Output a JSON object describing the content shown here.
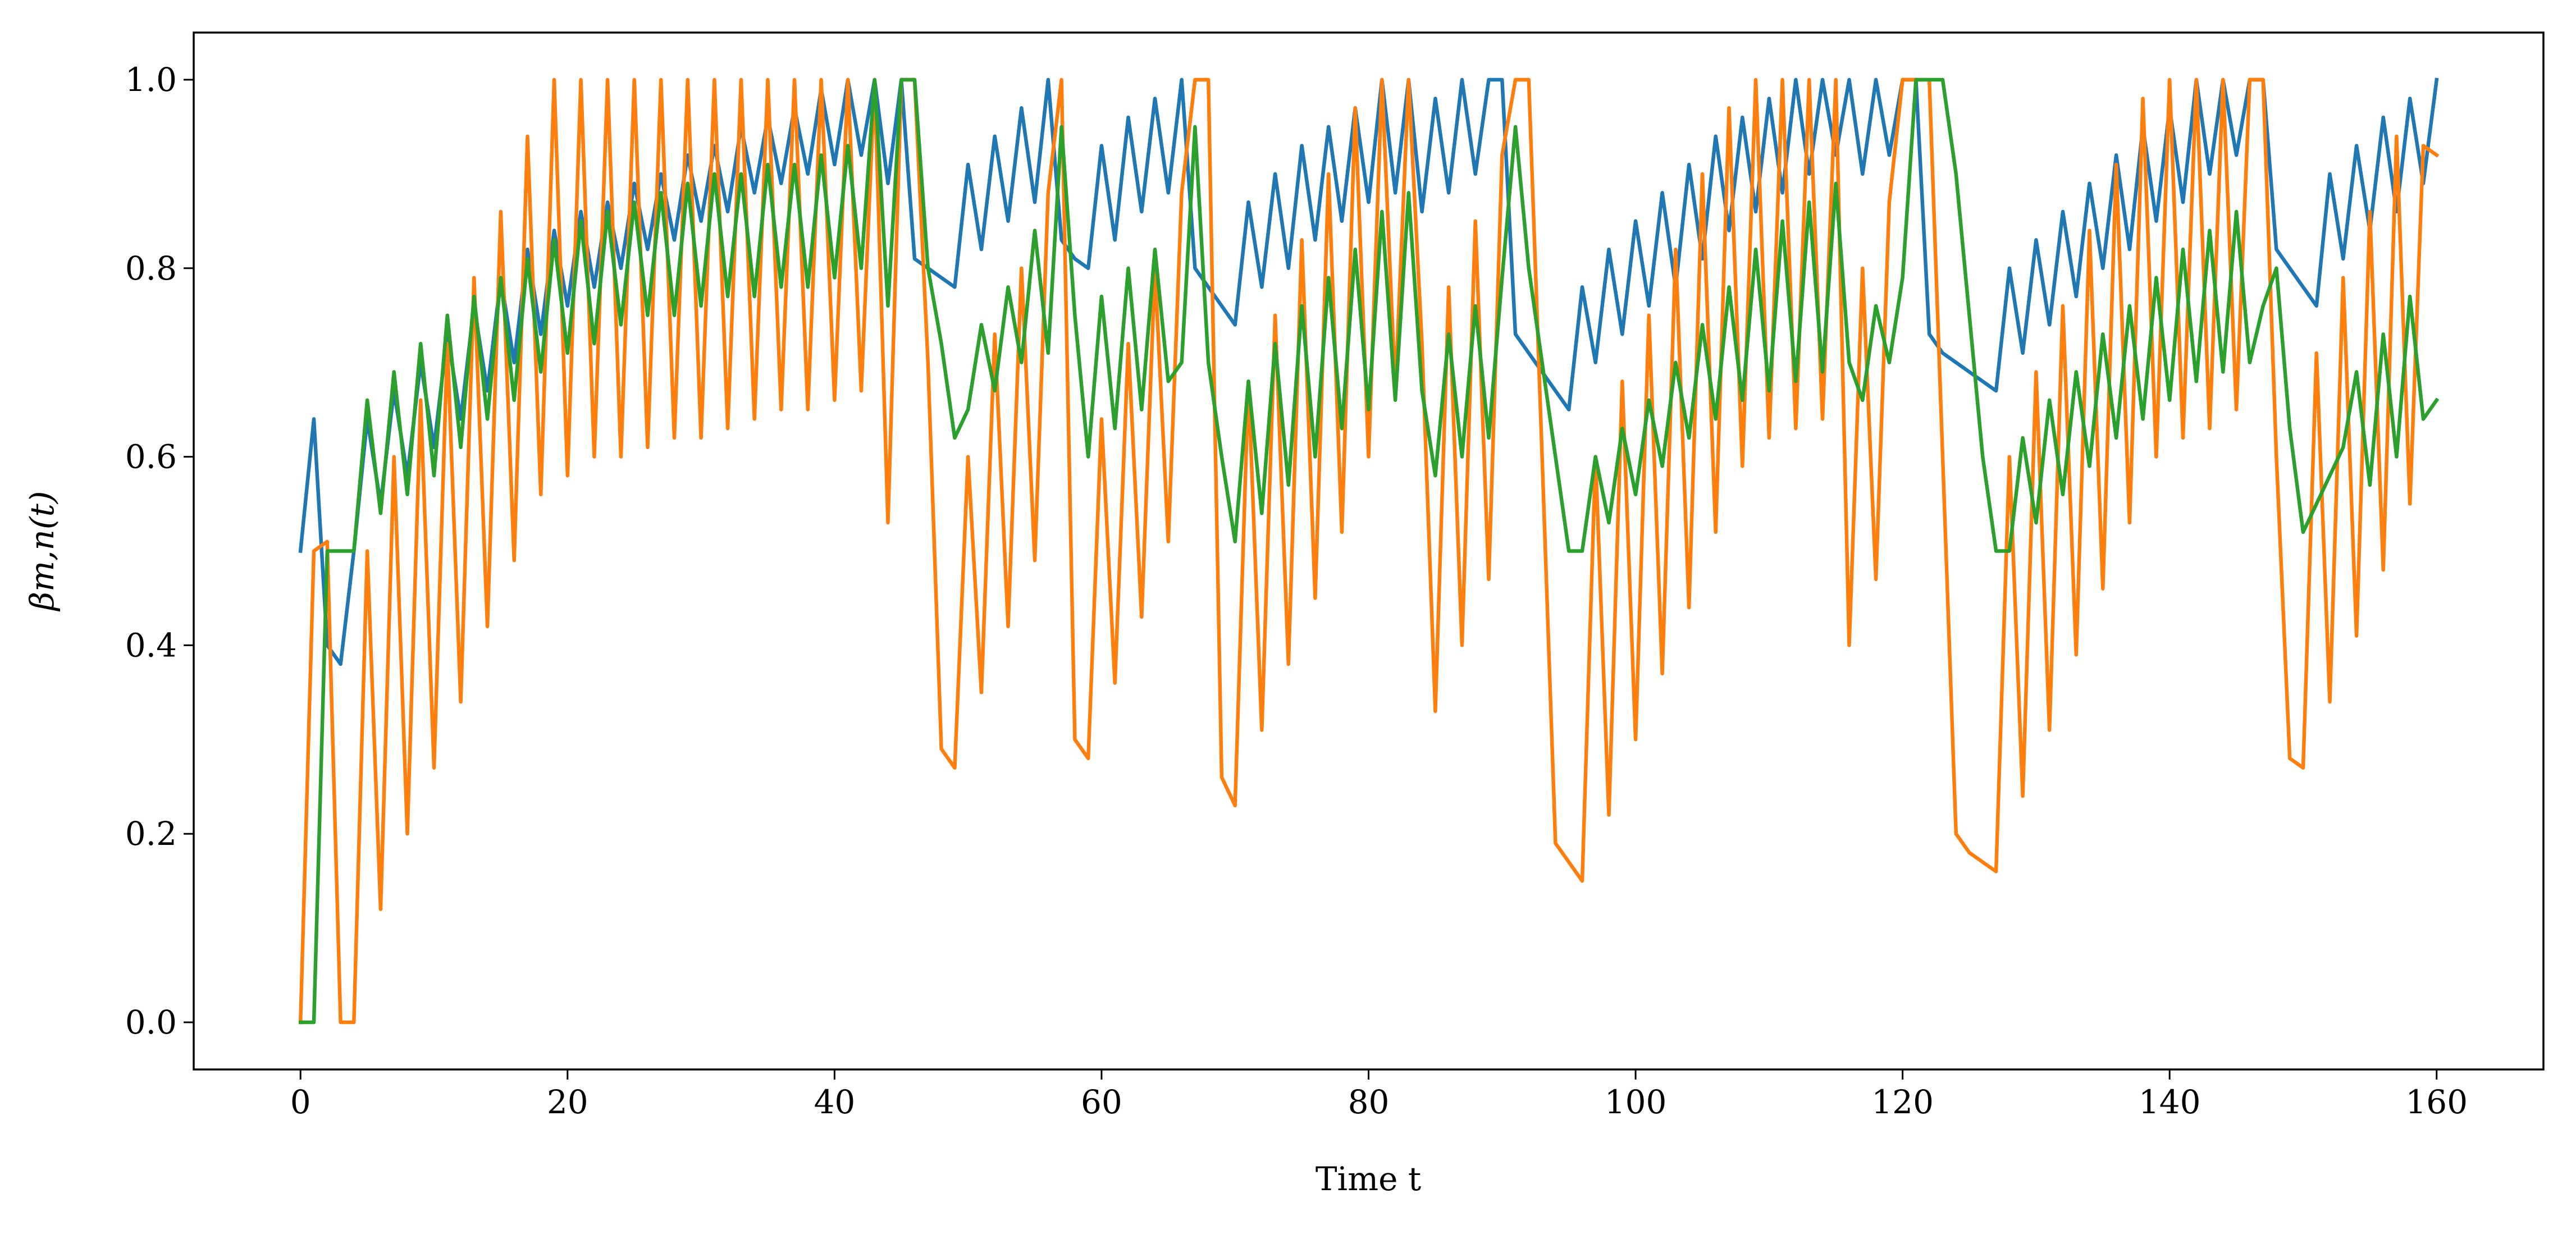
{
  "chart_data": {
    "type": "line",
    "xlabel": "Time t",
    "ylabel": "βm,n(t)",
    "xlim": [
      -8,
      168
    ],
    "ylim": [
      -0.05,
      1.05
    ],
    "xticks": [
      0,
      20,
      40,
      60,
      80,
      100,
      120,
      140,
      160
    ],
    "yticks": [
      {
        "value": 0,
        "label": "0.0"
      },
      {
        "value": 0.2,
        "label": "0.2"
      },
      {
        "value": 0.4,
        "label": "0.4"
      },
      {
        "value": 0.6,
        "label": "0.6"
      },
      {
        "value": 0.8,
        "label": "0.8"
      },
      {
        "value": 1,
        "label": "1.0"
      }
    ],
    "grid": false,
    "x": [
      0,
      1,
      2,
      3,
      4,
      5,
      6,
      7,
      8,
      9,
      10,
      11,
      12,
      13,
      14,
      15,
      16,
      17,
      18,
      19,
      20,
      21,
      22,
      23,
      24,
      25,
      26,
      27,
      28,
      29,
      30,
      31,
      32,
      33,
      34,
      35,
      36,
      37,
      38,
      39,
      40,
      41,
      42,
      43,
      44,
      45,
      46,
      47,
      48,
      49,
      50,
      51,
      52,
      53,
      54,
      55,
      56,
      57,
      58,
      59,
      60,
      61,
      62,
      63,
      64,
      65,
      66,
      67,
      68,
      69,
      70,
      71,
      72,
      73,
      74,
      75,
      76,
      77,
      78,
      79,
      80,
      81,
      82,
      83,
      84,
      85,
      86,
      87,
      88,
      89,
      90,
      91,
      92,
      93,
      94,
      95,
      96,
      97,
      98,
      99,
      100,
      101,
      102,
      103,
      104,
      105,
      106,
      107,
      108,
      109,
      110,
      111,
      112,
      113,
      114,
      115,
      116,
      117,
      118,
      119,
      120,
      121,
      122,
      123,
      124,
      125,
      126,
      127,
      128,
      129,
      130,
      131,
      132,
      133,
      134,
      135,
      136,
      137,
      138,
      139,
      140,
      141,
      142,
      143,
      144,
      145,
      146,
      147,
      148,
      149,
      150,
      151,
      152,
      153,
      154,
      155,
      156,
      157,
      158,
      159,
      160
    ],
    "series": [
      {
        "color": "#1f77b4",
        "values": [
          0.5,
          0.64,
          0.4,
          0.38,
          0.5,
          0.64,
          0.55,
          0.67,
          0.58,
          0.7,
          0.61,
          0.73,
          0.64,
          0.76,
          0.67,
          0.79,
          0.7,
          0.82,
          0.73,
          0.84,
          0.76,
          0.86,
          0.78,
          0.87,
          0.8,
          0.89,
          0.82,
          0.9,
          0.83,
          0.92,
          0.85,
          0.93,
          0.86,
          0.95,
          0.88,
          0.96,
          0.89,
          0.97,
          0.9,
          0.99,
          0.91,
          1.0,
          0.92,
          1.0,
          0.89,
          1.0,
          0.81,
          0.8,
          0.79,
          0.78,
          0.91,
          0.82,
          0.94,
          0.85,
          0.97,
          0.87,
          1.0,
          0.83,
          0.81,
          0.8,
          0.93,
          0.83,
          0.96,
          0.86,
          0.98,
          0.88,
          1.0,
          0.8,
          0.78,
          0.76,
          0.74,
          0.87,
          0.78,
          0.9,
          0.8,
          0.93,
          0.83,
          0.95,
          0.85,
          0.97,
          0.87,
          1.0,
          0.88,
          1.0,
          0.86,
          0.98,
          0.88,
          1.0,
          0.9,
          1.0,
          1.0,
          0.73,
          0.71,
          0.69,
          0.67,
          0.65,
          0.78,
          0.7,
          0.82,
          0.73,
          0.85,
          0.76,
          0.88,
          0.78,
          0.91,
          0.81,
          0.94,
          0.84,
          0.96,
          0.86,
          0.98,
          0.88,
          1.0,
          0.9,
          1.0,
          0.92,
          1.0,
          0.9,
          1.0,
          0.92,
          1.0,
          1.0,
          0.73,
          0.71,
          0.7,
          0.69,
          0.68,
          0.67,
          0.8,
          0.71,
          0.83,
          0.74,
          0.86,
          0.77,
          0.89,
          0.8,
          0.92,
          0.82,
          0.95,
          0.85,
          0.97,
          0.87,
          1.0,
          0.9,
          1.0,
          0.92,
          1.0,
          1.0,
          0.82,
          0.8,
          0.78,
          0.76,
          0.9,
          0.81,
          0.93,
          0.84,
          0.96,
          0.86,
          0.98,
          0.89,
          1.0
        ]
      },
      {
        "color": "#ff7f0e",
        "values": [
          0,
          0.5,
          0.51,
          0,
          0,
          0.5,
          0.12,
          0.6,
          0.2,
          0.66,
          0.27,
          0.72,
          0.34,
          0.79,
          0.42,
          0.86,
          0.49,
          0.94,
          0.56,
          1.0,
          0.58,
          1.0,
          0.6,
          1.0,
          0.6,
          1.0,
          0.61,
          1.0,
          0.62,
          1.0,
          0.62,
          1.0,
          0.63,
          1.0,
          0.64,
          1.0,
          0.65,
          1.0,
          0.65,
          1.0,
          0.66,
          1.0,
          0.67,
          1.0,
          0.53,
          1.0,
          1.0,
          0.7,
          0.29,
          0.27,
          0.6,
          0.35,
          0.73,
          0.42,
          0.8,
          0.49,
          0.88,
          1.0,
          0.3,
          0.28,
          0.64,
          0.36,
          0.72,
          0.43,
          0.8,
          0.51,
          0.88,
          1.0,
          1.0,
          0.26,
          0.23,
          0.68,
          0.31,
          0.75,
          0.38,
          0.83,
          0.45,
          0.9,
          0.52,
          0.97,
          0.6,
          1.0,
          0.67,
          1.0,
          0.72,
          0.33,
          0.78,
          0.4,
          0.85,
          0.47,
          0.92,
          1.0,
          1.0,
          0.6,
          0.19,
          0.17,
          0.15,
          0.6,
          0.22,
          0.68,
          0.3,
          0.75,
          0.37,
          0.82,
          0.44,
          0.9,
          0.52,
          0.97,
          0.59,
          1.0,
          0.62,
          1.0,
          0.63,
          1.0,
          0.64,
          1.0,
          0.4,
          0.8,
          0.47,
          0.87,
          1.0,
          1.0,
          1.0,
          0.6,
          0.2,
          0.18,
          0.17,
          0.16,
          0.6,
          0.24,
          0.69,
          0.31,
          0.76,
          0.39,
          0.84,
          0.46,
          0.91,
          0.53,
          0.98,
          0.6,
          1.0,
          0.62,
          1.0,
          0.63,
          1.0,
          0.65,
          1.0,
          1.0,
          0.6,
          0.28,
          0.27,
          0.71,
          0.34,
          0.79,
          0.41,
          0.86,
          0.48,
          0.94,
          0.55,
          0.93,
          0.92
        ]
      },
      {
        "color": "#2ca02c",
        "values": [
          0,
          0,
          0.5,
          0.5,
          0.5,
          0.66,
          0.54,
          0.69,
          0.56,
          0.72,
          0.58,
          0.75,
          0.61,
          0.77,
          0.64,
          0.79,
          0.66,
          0.81,
          0.69,
          0.83,
          0.71,
          0.85,
          0.72,
          0.86,
          0.74,
          0.87,
          0.75,
          0.88,
          0.75,
          0.89,
          0.76,
          0.9,
          0.77,
          0.9,
          0.77,
          0.91,
          0.78,
          0.91,
          0.78,
          0.92,
          0.79,
          0.93,
          0.8,
          1.0,
          0.76,
          1.0,
          1.0,
          0.8,
          0.72,
          0.62,
          0.65,
          0.74,
          0.67,
          0.78,
          0.7,
          0.84,
          0.71,
          0.95,
          0.75,
          0.6,
          0.77,
          0.63,
          0.8,
          0.65,
          0.82,
          0.68,
          0.7,
          0.95,
          0.7,
          0.6,
          0.51,
          0.68,
          0.54,
          0.72,
          0.57,
          0.76,
          0.6,
          0.79,
          0.63,
          0.82,
          0.65,
          0.86,
          0.66,
          0.88,
          0.67,
          0.58,
          0.73,
          0.6,
          0.76,
          0.62,
          0.79,
          0.95,
          0.8,
          0.7,
          0.6,
          0.5,
          0.5,
          0.6,
          0.53,
          0.63,
          0.56,
          0.66,
          0.59,
          0.7,
          0.62,
          0.74,
          0.64,
          0.78,
          0.66,
          0.82,
          0.67,
          0.85,
          0.68,
          0.87,
          0.69,
          0.89,
          0.7,
          0.66,
          0.76,
          0.7,
          0.79,
          1.0,
          1.0,
          1.0,
          0.9,
          0.75,
          0.6,
          0.5,
          0.5,
          0.62,
          0.53,
          0.66,
          0.56,
          0.69,
          0.59,
          0.73,
          0.62,
          0.76,
          0.64,
          0.79,
          0.66,
          0.82,
          0.68,
          0.84,
          0.69,
          0.86,
          0.7,
          0.76,
          0.8,
          0.63,
          0.52,
          0.55,
          0.58,
          0.61,
          0.69,
          0.57,
          0.73,
          0.6,
          0.77,
          0.64,
          0.66
        ]
      }
    ]
  }
}
